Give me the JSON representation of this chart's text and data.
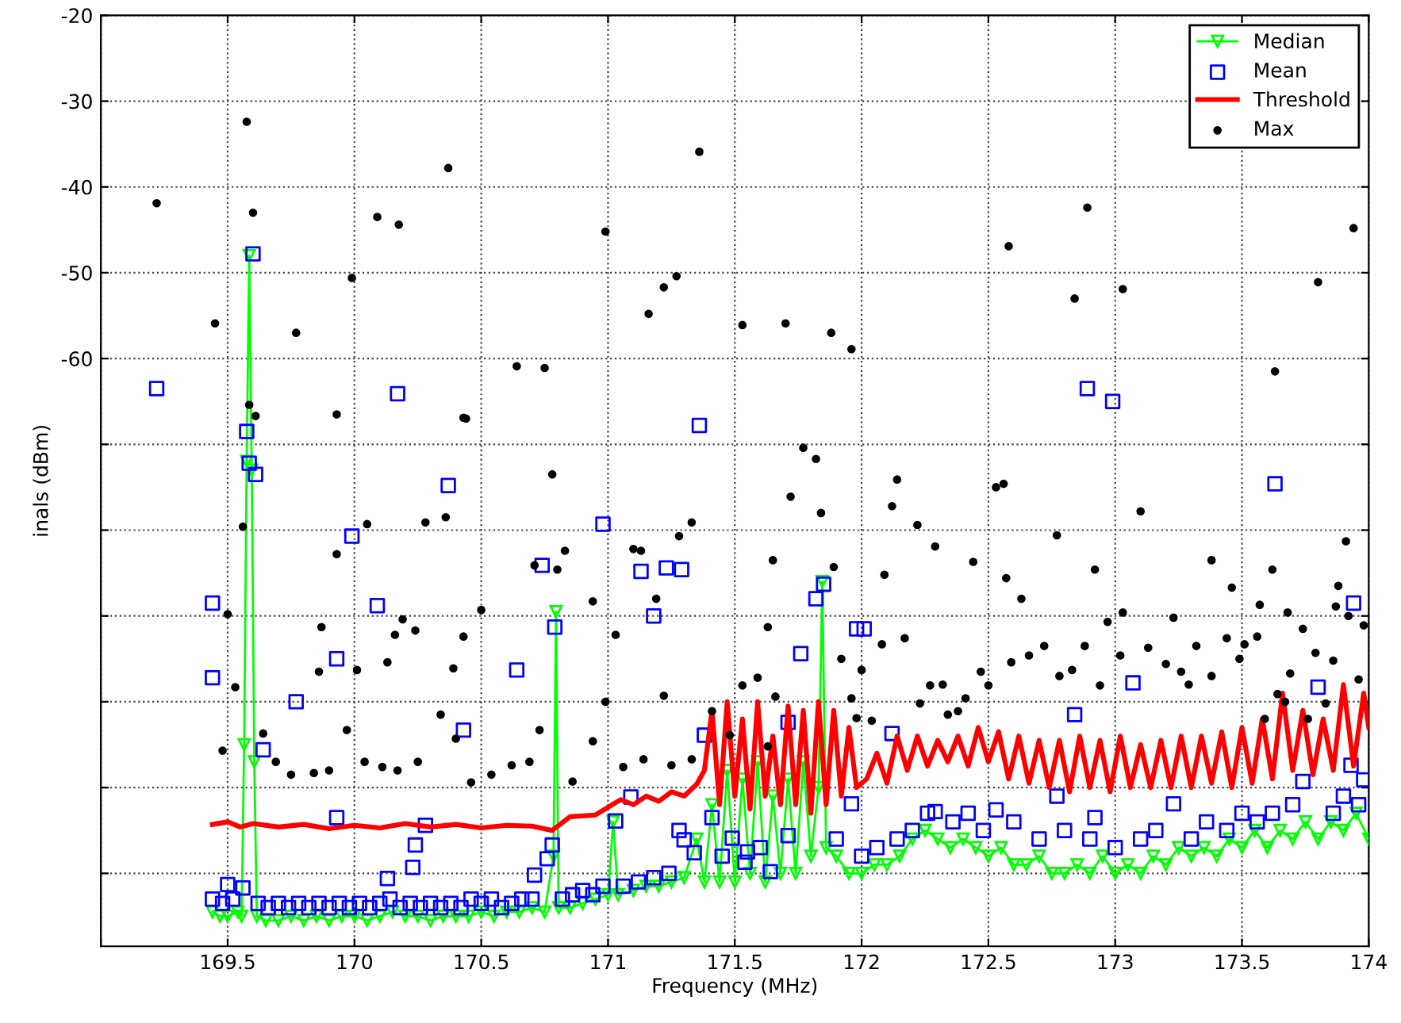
{
  "chart_data": {
    "type": "line",
    "xlabel": "Frequency (MHz)",
    "ylabel": "inals (dBm)",
    "xlim": [
      169,
      174
    ],
    "ylim": [
      -128.5,
      -20
    ],
    "xticks": [
      {
        "value": 169,
        "label": null
      },
      169.5,
      170,
      170.5,
      171,
      171.5,
      172,
      172.5,
      173,
      173.5,
      174
    ],
    "yticks": [
      -20,
      -30,
      -40,
      -50,
      -60,
      {
        "value": -70,
        "label": null
      },
      {
        "value": -80,
        "label": null
      },
      {
        "value": -90,
        "label": null
      },
      {
        "value": -100,
        "label": null
      },
      {
        "value": -110,
        "label": null
      },
      {
        "value": -120,
        "label": null
      }
    ],
    "grid": true,
    "legend": "top right",
    "series": [
      {
        "name": "Median",
        "color": "#00ff00",
        "marker": "triangle",
        "x": [
          169.44,
          169.47,
          169.5,
          169.54,
          169.555,
          169.565,
          169.575,
          169.585,
          169.595,
          169.605,
          169.615,
          169.65,
          169.7,
          169.75,
          169.8,
          169.85,
          169.9,
          169.95,
          170.0,
          170.05,
          170.1,
          170.15,
          170.2,
          170.25,
          170.3,
          170.35,
          170.4,
          170.45,
          170.5,
          170.55,
          170.6,
          170.65,
          170.7,
          170.75,
          170.785,
          170.795,
          170.805,
          170.85,
          170.9,
          170.95,
          171.0,
          171.02,
          171.04,
          171.1,
          171.15,
          171.2,
          171.25,
          171.3,
          171.35,
          171.38,
          171.41,
          171.44,
          171.47,
          171.5,
          171.53,
          171.56,
          171.59,
          171.62,
          171.65,
          171.68,
          171.71,
          171.74,
          171.77,
          171.8,
          171.83,
          171.845,
          171.86,
          171.9,
          171.95,
          172.0,
          172.05,
          172.1,
          172.15,
          172.2,
          172.25,
          172.3,
          172.35,
          172.4,
          172.45,
          172.5,
          172.55,
          172.6,
          172.65,
          172.7,
          172.75,
          172.8,
          172.85,
          172.9,
          172.95,
          173.0,
          173.05,
          173.1,
          173.15,
          173.2,
          173.25,
          173.3,
          173.35,
          173.4,
          173.45,
          173.5,
          173.55,
          173.6,
          173.65,
          173.7,
          173.75,
          173.8,
          173.85,
          173.9,
          173.95,
          174.0
        ],
        "values": [
          -124.5,
          -125,
          -125,
          -124.5,
          -125,
          -105,
          -72,
          -48,
          -73,
          -107,
          -125,
          -125.5,
          -125.5,
          -125,
          -125.5,
          -125,
          -125.5,
          -125,
          -125,
          -125.5,
          -125,
          -124.5,
          -125,
          -125,
          -125.5,
          -125,
          -125,
          -125,
          -124.5,
          -125,
          -124.5,
          -124.5,
          -124,
          -124.5,
          -118,
          -89.5,
          -124,
          -124,
          -123.5,
          -123,
          -122.5,
          -114,
          -122.5,
          -122,
          -121.5,
          -121.5,
          -121,
          -120.5,
          -116,
          -121,
          -112,
          -121,
          -108,
          -121,
          -109,
          -120,
          -107,
          -121,
          -111,
          -120,
          -109,
          -120,
          -107,
          -118,
          -110,
          -86,
          -117,
          -118,
          -120,
          -120,
          -119,
          -119,
          -118,
          -116,
          -115,
          -116,
          -117,
          -116,
          -117,
          -118,
          -117,
          -119,
          -119,
          -118,
          -120,
          -120,
          -119,
          -120,
          -118,
          -120,
          -119,
          -120,
          -118,
          -119,
          -117,
          -118,
          -117,
          -118,
          -116,
          -117,
          -115,
          -117,
          -115,
          -116,
          -114,
          -116,
          -114,
          -115,
          -113,
          -116
        ]
      },
      {
        "name": "Mean",
        "type": "scatter",
        "color": "#0000ff",
        "marker": "square",
        "x": [
          169.44,
          169.48,
          169.52,
          169.62,
          169.66,
          169.7,
          169.74,
          169.78,
          169.82,
          169.86,
          169.9,
          169.94,
          169.98,
          170.02,
          170.06,
          170.1,
          170.14,
          170.18,
          170.22,
          170.26,
          170.3,
          170.34,
          170.38,
          170.42,
          170.46,
          170.5,
          170.54,
          170.58,
          170.62,
          170.66,
          170.7,
          170.82,
          170.86,
          170.9,
          170.94,
          170.98,
          171.06,
          171.12,
          171.18,
          171.24,
          171.45,
          171.55,
          171.6,
          171.9,
          172.0,
          172.06,
          172.14,
          172.2,
          172.26,
          172.36,
          172.42,
          172.48,
          172.6,
          172.7,
          172.8,
          172.9,
          173.0,
          173.1,
          173.16,
          173.3,
          173.36,
          173.44,
          173.5,
          173.56,
          173.62,
          173.7,
          173.86,
          173.9,
          173.96,
          169.22,
          169.6,
          169.585,
          169.61,
          169.575,
          169.44,
          169.44,
          169.64,
          169.77,
          169.93,
          169.99,
          170.09,
          170.17,
          170.37,
          170.43,
          170.64,
          170.74,
          170.79,
          170.98,
          171.13,
          171.23,
          171.29,
          171.36,
          171.18,
          171.85,
          171.82,
          171.76,
          171.71,
          172.01,
          172.99,
          172.89,
          173.63,
          173.07,
          172.84,
          172.77,
          173.23,
          173.8,
          173.94,
          173.93,
          173.98,
          173.74,
          172.12,
          171.98,
          171.96,
          172.29,
          172.53,
          172.92,
          169.93,
          170.24,
          170.23,
          170.13,
          170.28,
          170.71,
          170.76,
          170.78,
          171.03,
          171.09,
          171.28,
          171.3,
          171.34,
          171.41,
          171.49,
          171.54,
          171.64,
          171.71,
          171.38,
          169.5,
          169.56
        ],
        "values": [
          -123,
          -123.5,
          -123,
          -123.5,
          -124,
          -123.5,
          -124,
          -123.5,
          -124,
          -123.5,
          -124,
          -123.5,
          -124,
          -123.5,
          -124,
          -123.5,
          -123,
          -124,
          -123.5,
          -124,
          -123.5,
          -124,
          -123.5,
          -124,
          -123,
          -123.5,
          -123,
          -124,
          -123.5,
          -123,
          -123,
          -123,
          -122.5,
          -122,
          -122.5,
          -121.5,
          -121.5,
          -121,
          -120.5,
          -120,
          -118,
          -117.5,
          -117,
          -116,
          -118,
          -117,
          -116,
          -115,
          -113,
          -114,
          -113,
          -115,
          -114,
          -116,
          -115,
          -116,
          -117,
          -116,
          -115,
          -116,
          -114,
          -115,
          -113,
          -114,
          -113,
          -112,
          -113,
          -111,
          -112,
          -63.5,
          -47.8,
          -72.2,
          -73.5,
          -68.5,
          -88.5,
          -97.2,
          -105.6,
          -100,
          -95,
          -80.7,
          -88.8,
          -64.1,
          -74.8,
          -103.3,
          -96.3,
          -84.1,
          -91.3,
          -79.3,
          -84.8,
          -84.4,
          -84.6,
          -67.8,
          -90,
          -86.3,
          -88,
          -94.4,
          -102.4,
          -91.5,
          -65,
          -63.5,
          -74.6,
          -97.8,
          -101.5,
          -111,
          -111.9,
          -98.3,
          -88.5,
          -107.4,
          -109.1,
          -109.3,
          -103.7,
          -91.5,
          -111.9,
          -112.8,
          -112.6,
          -113.5,
          -113.5,
          -116.7,
          -119.3,
          -120.6,
          -114.4,
          -120.2,
          -118.3,
          -116.7,
          -113.9,
          -111.1,
          -115,
          -116.1,
          -117.6,
          -113.5,
          -115.9,
          -118.7,
          -119.8,
          -115.6,
          -103.9,
          -121.3,
          -121.7
        ]
      },
      {
        "name": "Threshold",
        "color": "#ff0000",
        "marker": "none",
        "x": [
          169.44,
          169.5,
          169.55,
          169.6,
          169.7,
          169.8,
          169.9,
          170.0,
          170.1,
          170.2,
          170.3,
          170.4,
          170.5,
          170.6,
          170.7,
          170.78,
          170.85,
          170.95,
          171.0,
          171.05,
          171.1,
          171.15,
          171.2,
          171.25,
          171.3,
          171.35,
          171.38,
          171.41,
          171.44,
          171.47,
          171.5,
          171.53,
          171.56,
          171.59,
          171.62,
          171.65,
          171.68,
          171.71,
          171.74,
          171.77,
          171.8,
          171.83,
          171.86,
          171.89,
          171.92,
          171.95,
          171.98,
          172.02,
          172.06,
          172.1,
          172.14,
          172.18,
          172.22,
          172.26,
          172.3,
          172.34,
          172.38,
          172.42,
          172.46,
          172.5,
          172.54,
          172.58,
          172.62,
          172.66,
          172.7,
          172.74,
          172.78,
          172.82,
          172.86,
          172.9,
          172.94,
          172.98,
          173.02,
          173.06,
          173.1,
          173.14,
          173.18,
          173.22,
          173.26,
          173.3,
          173.34,
          173.38,
          173.42,
          173.46,
          173.5,
          173.54,
          173.58,
          173.62,
          173.66,
          173.7,
          173.74,
          173.78,
          173.82,
          173.86,
          173.9,
          173.94,
          173.98,
          174.0
        ],
        "values": [
          -114.3,
          -114,
          -114.6,
          -114.2,
          -114.6,
          -114.3,
          -114.8,
          -114.4,
          -114.7,
          -114.2,
          -114.6,
          -114.3,
          -114.7,
          -114.4,
          -114.5,
          -115,
          -113.4,
          -113.2,
          -112.3,
          -111.4,
          -112,
          -111,
          -111.6,
          -110.5,
          -111,
          -109.6,
          -108,
          -101,
          -112,
          -100,
          -111,
          -102,
          -112.5,
          -100,
          -111,
          -104,
          -112,
          -100.5,
          -112,
          -101,
          -113,
          -100,
          -112,
          -101,
          -111,
          -103,
          -110,
          -109,
          -106,
          -109.5,
          -104,
          -108,
          -104,
          -107.5,
          -104.5,
          -107,
          -104,
          -107.5,
          -103,
          -107,
          -103.5,
          -109,
          -104,
          -109.5,
          -104.5,
          -110,
          -104.5,
          -110.5,
          -104,
          -110,
          -104.5,
          -110.5,
          -104,
          -110,
          -105,
          -110,
          -104.5,
          -110,
          -104,
          -110,
          -104,
          -109.5,
          -103.5,
          -110,
          -103,
          -109.5,
          -102,
          -109,
          -99,
          -108,
          -101,
          -108.5,
          -102,
          -108,
          -98,
          -107.5,
          -99,
          -103
        ]
      },
      {
        "name": "Max",
        "type": "scatter",
        "color": "#000000",
        "marker": "circle",
        "x": [
          169.22,
          169.45,
          169.575,
          169.6,
          169.77,
          169.93,
          169.99,
          170.09,
          170.175,
          170.37,
          170.43,
          170.64,
          170.75,
          170.99,
          171.16,
          171.22,
          171.27,
          171.36,
          171.53,
          171.7,
          171.88,
          171.96,
          172.58,
          172.84,
          172.89,
          173.03,
          173.63,
          173.8,
          173.94,
          169.61,
          169.585,
          169.56,
          169.5,
          170.44,
          170.05,
          170.28,
          170.36,
          169.93,
          169.87,
          170.19,
          170.16,
          170.24,
          170.43,
          170.39,
          170.13,
          170.01,
          169.86,
          170.5,
          170.78,
          170.83,
          170.8,
          170.71,
          170.94,
          171.1,
          171.13,
          171.03,
          171.19,
          171.28,
          171.33,
          171.65,
          171.72,
          171.63,
          169.48,
          169.53,
          169.64,
          169.69,
          169.75,
          169.84,
          169.9,
          169.97,
          170.04,
          170.11,
          170.17,
          170.25,
          170.34,
          170.4,
          170.46,
          170.54,
          170.62,
          170.69,
          170.73,
          170.86,
          170.94,
          170.99,
          171.06,
          171.14,
          171.22,
          171.25,
          171.33,
          171.41,
          171.48,
          171.53,
          171.59,
          171.66,
          171.63,
          171.77,
          171.82,
          171.84,
          171.89,
          171.92,
          171.96,
          172.0,
          171.98,
          172.04,
          172.09,
          172.14,
          172.12,
          172.08,
          172.17,
          172.22,
          172.29,
          172.23,
          172.27,
          172.32,
          172.34,
          172.38,
          172.41,
          172.44,
          172.47,
          172.5,
          172.53,
          172.56,
          172.57,
          172.63,
          172.59,
          172.66,
          172.72,
          172.77,
          172.78,
          172.83,
          172.88,
          172.92,
          172.94,
          172.97,
          173.03,
          173.02,
          173.1,
          173.13,
          173.2,
          173.23,
          173.26,
          173.29,
          173.32,
          173.38,
          173.38,
          173.44,
          173.46,
          173.49,
          173.51,
          173.56,
          173.57,
          173.62,
          173.64,
          173.68,
          173.69,
          173.74,
          173.79,
          173.86,
          173.87,
          173.88,
          173.91,
          173.92,
          173.98,
          173.96,
          173.76,
          173.83,
          173.67,
          173.59
        ],
        "values": [
          -41.9,
          -55.9,
          -32.4,
          -43,
          -57,
          -66.5,
          -50.6,
          -43.5,
          -44.4,
          -37.8,
          -66.9,
          -60.9,
          -61.1,
          -45.2,
          -54.8,
          -51.7,
          -50.4,
          -35.9,
          -56.1,
          -55.9,
          -57,
          -58.9,
          -46.9,
          -53,
          -42.4,
          -51.9,
          -61.5,
          -51.1,
          -44.8,
          -66.7,
          -65.4,
          -79.6,
          -89.8,
          -67,
          -79.3,
          -79.1,
          -78.5,
          -82.8,
          -91.3,
          -90.4,
          -92.2,
          -91.7,
          -92.4,
          -96.1,
          -95.4,
          -96.3,
          -96.5,
          -89.3,
          -73.5,
          -82.4,
          -84.6,
          -84.1,
          -88.3,
          -82.2,
          -82.4,
          -92.2,
          -88,
          -80.7,
          -79.1,
          -83.5,
          -76.1,
          -91.3,
          -105.7,
          -98.3,
          -103.7,
          -107,
          -108.5,
          -108.3,
          -108,
          -103.3,
          -107,
          -107.6,
          -108,
          -107,
          -101.5,
          -104.3,
          -109.4,
          -108.5,
          -107.4,
          -107,
          -103.3,
          -109.3,
          -104.6,
          -100,
          -107.6,
          -106.7,
          -99.3,
          -107.4,
          -106.7,
          -101.1,
          -103.9,
          -98.1,
          -97.2,
          -99.4,
          -105.2,
          -70.4,
          -71.7,
          -78,
          -84.3,
          -95,
          -99.6,
          -96.3,
          -101.9,
          -102.2,
          -85.2,
          -74.1,
          -77.2,
          -93.3,
          -92.6,
          -79.4,
          -81.9,
          -100.2,
          -98.1,
          -98,
          -101.5,
          -101.1,
          -99.6,
          -83.7,
          -96.5,
          -98.1,
          -75,
          -74.6,
          -85.6,
          -88,
          -95.4,
          -94.6,
          -93.5,
          -80.6,
          -97,
          -96.3,
          -93.5,
          -84.6,
          -98.1,
          -90.7,
          -89.6,
          -94.6,
          -77.8,
          -93.7,
          -95.6,
          -90.2,
          -96.5,
          -98,
          -93.5,
          -83.5,
          -97,
          -92.6,
          -86.7,
          -95,
          -93.3,
          -92.4,
          -88.7,
          -84.6,
          -99.1,
          -89.6,
          -96.7,
          -91.5,
          -94.3,
          -95.2,
          -88.9,
          -86.5,
          -81.3,
          -90,
          -91.1,
          -97.4,
          -102,
          -100.2,
          -100,
          -102
        ]
      }
    ]
  }
}
